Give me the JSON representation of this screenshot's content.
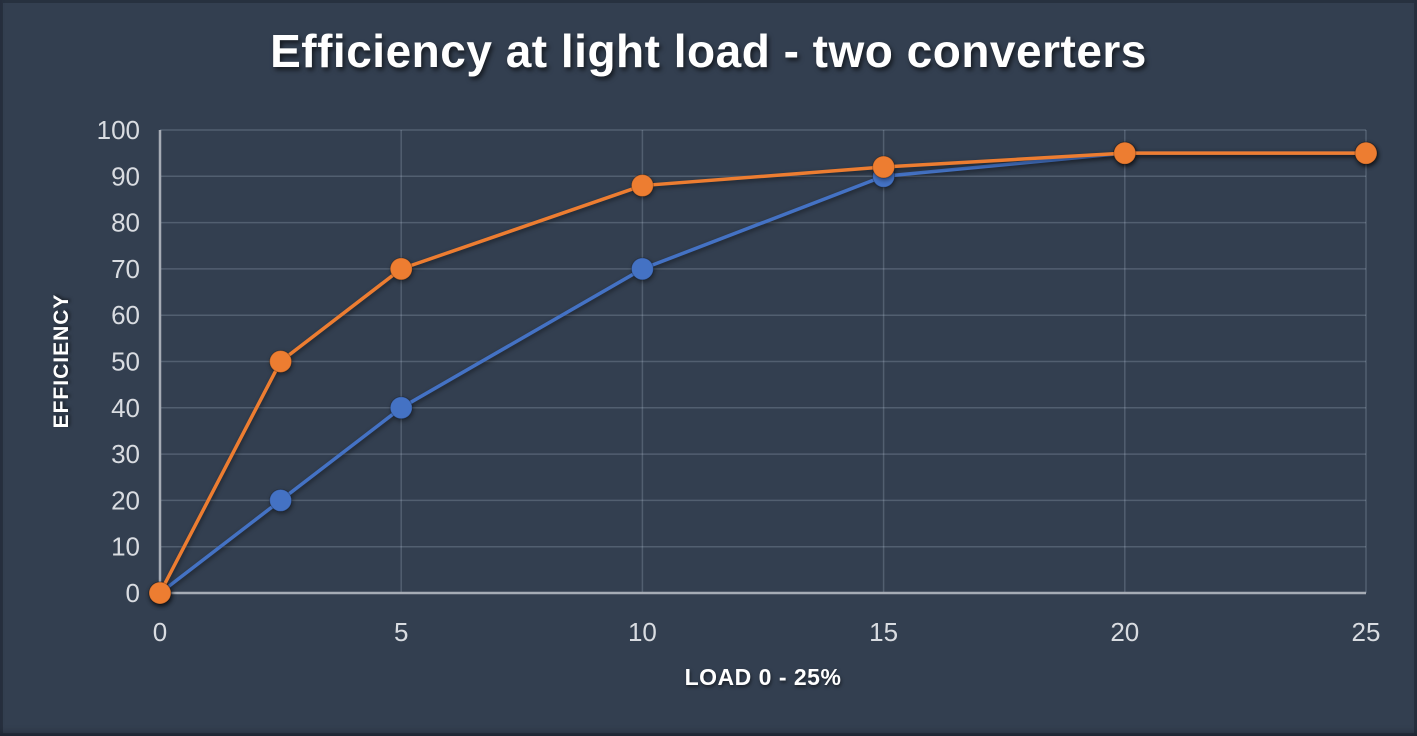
{
  "chart_data": {
    "type": "line",
    "title": "Efficiency at light load - two converters",
    "xlabel": "LOAD 0 - 25%",
    "ylabel": "EFFICIENCY",
    "x": [
      0,
      2.5,
      5,
      10,
      15,
      20,
      25
    ],
    "series": [
      {
        "id": "blue",
        "color": "#4472C4",
        "values": [
          0,
          20,
          40,
          70,
          90,
          95,
          95
        ]
      },
      {
        "id": "orange",
        "color": "#ED7D31",
        "values": [
          0,
          50,
          70,
          88,
          92,
          95,
          95
        ]
      }
    ],
    "xlim": [
      0,
      25
    ],
    "ylim": [
      0,
      100
    ],
    "x_ticks": [
      0,
      5,
      10,
      15,
      20,
      25
    ],
    "y_ticks": [
      0,
      10,
      20,
      30,
      40,
      50,
      60,
      70,
      80,
      90,
      100
    ],
    "grid": true,
    "legend": "none",
    "marker": "circle"
  },
  "colors": {
    "background": "#333F50",
    "gridline": "rgba(198,210,226,0.22)",
    "axis_line": "#A6ACB5",
    "tick_text": "#D9DCE1",
    "title_text": "#FFFFFF",
    "series_blue": "#4472C4",
    "series_orange": "#ED7D31"
  }
}
